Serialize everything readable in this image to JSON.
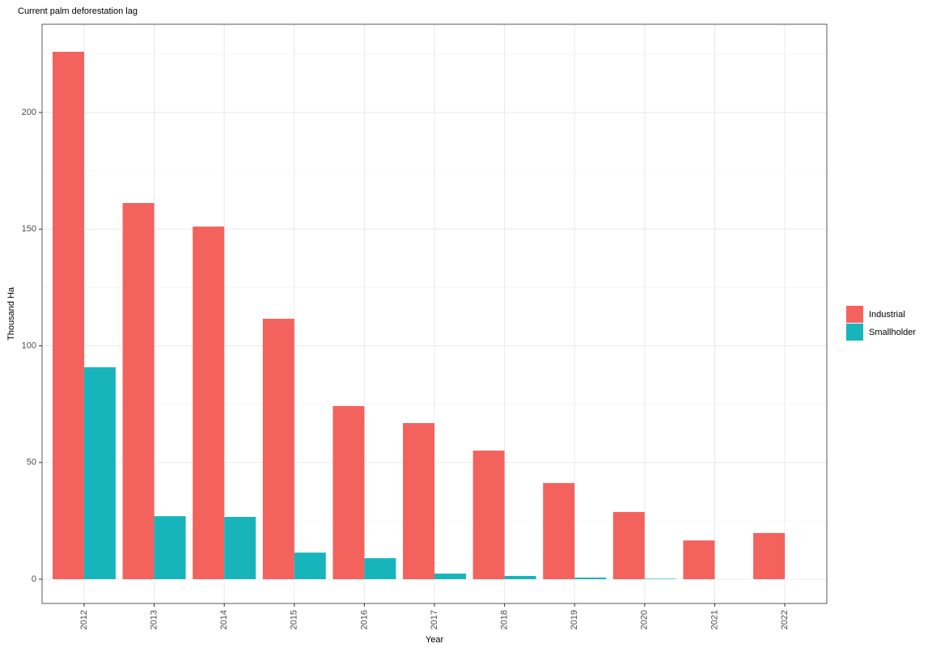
{
  "chart_data": {
    "type": "bar",
    "title": "Current palm deforestation lag",
    "x_label": "Year",
    "y_label": "Thousand Ha",
    "categories": [
      "2012",
      "2013",
      "2014",
      "2015",
      "2016",
      "2017",
      "2018",
      "2019",
      "2020",
      "2021",
      "2022"
    ],
    "series": [
      {
        "name": "Industrial",
        "color": "#F4625E",
        "values": [
          226,
          161.2,
          151.1,
          111.6,
          74.2,
          66.9,
          55.1,
          41.2,
          28.8,
          16.6,
          19.8
        ]
      },
      {
        "name": "Smallholder",
        "color": "#17B5BB",
        "values": [
          90.8,
          27.0,
          26.7,
          11.4,
          9.0,
          2.4,
          1.4,
          0.7,
          0.2,
          0,
          0
        ]
      }
    ],
    "ylim": [
      -10.4,
      237.8
    ],
    "yticks": [
      0,
      50,
      100,
      150,
      200
    ],
    "yminor_ticks": [
      25,
      75,
      125,
      175,
      225
    ],
    "grid": true,
    "legend": "right"
  }
}
